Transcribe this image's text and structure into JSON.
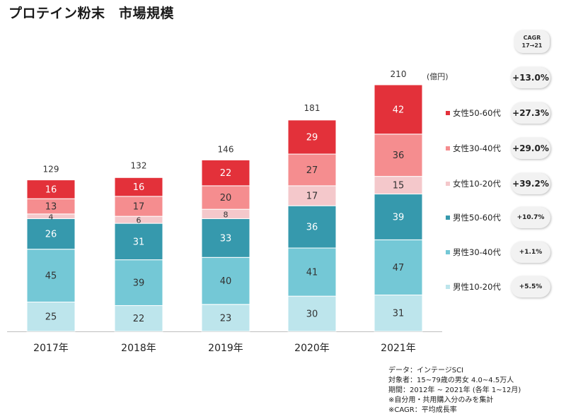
{
  "title": "プロテイン粉末　市場規模",
  "unit": "(億円)",
  "cagr_header": [
    "CAGR",
    "17→21"
  ],
  "notes": [
    "データ：インテージSCI",
    "対象者：15~79歳の男女 4.0~4.5万人",
    "期間：2012年 ~ 2021年 (各年 1~12月)",
    "※自分用・共用購入分のみを集計",
    "※CAGR：平均成長率"
  ],
  "chart_data": {
    "type": "bar",
    "stacked": true,
    "categories": [
      "2017年",
      "2018年",
      "2019年",
      "2020年",
      "2021年"
    ],
    "totals": [
      129,
      132,
      146,
      181,
      210
    ],
    "series": [
      {
        "name": "男性10-20代",
        "color": "#bde5ec",
        "cagr": "+5.5%",
        "values": [
          25,
          22,
          23,
          30,
          31
        ]
      },
      {
        "name": "男性30-40代",
        "color": "#74c8d6",
        "cagr": "+1.1%",
        "values": [
          45,
          39,
          40,
          41,
          47
        ]
      },
      {
        "name": "男性50-60代",
        "color": "#3699ad",
        "cagr": "+10.7%",
        "values": [
          26,
          31,
          33,
          36,
          39
        ]
      },
      {
        "name": "女性10-20代",
        "color": "#f4c8cb",
        "cagr": "+39.2%",
        "values": [
          4,
          6,
          8,
          17,
          15
        ]
      },
      {
        "name": "女性30-40代",
        "color": "#f58d8f",
        "cagr": "+29.0%",
        "values": [
          13,
          17,
          20,
          27,
          36
        ]
      },
      {
        "name": "女性50-60代",
        "color": "#e3313a",
        "cagr": "+27.3%",
        "values": [
          16,
          16,
          22,
          29,
          42
        ]
      }
    ],
    "total_cagr": "+13.0%",
    "ylim": [
      0,
      210
    ]
  }
}
